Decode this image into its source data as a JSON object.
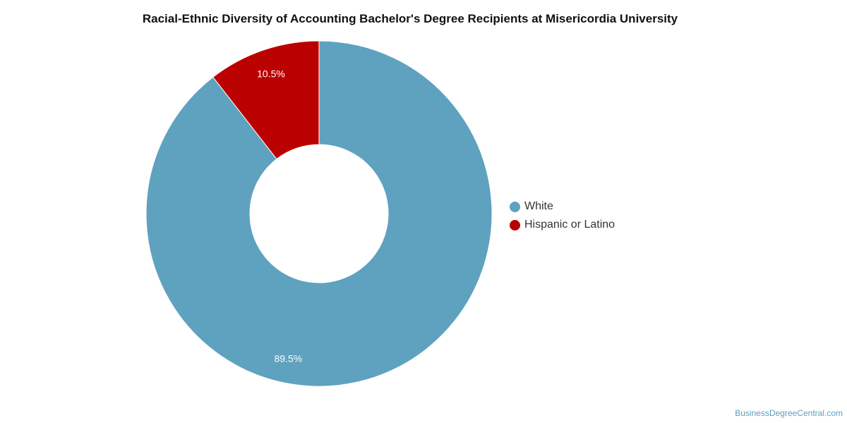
{
  "chart_data": {
    "type": "pie",
    "title": "Racial-Ethnic Diversity of Accounting Bachelor's Degree Recipients at Misericordia University",
    "donut": true,
    "legend_position": "right",
    "slices": [
      {
        "label": "White",
        "value": 89.5,
        "value_label": "89.5%",
        "color": "#5ea2bf"
      },
      {
        "label": "Hispanic or Latino",
        "value": 10.5,
        "value_label": "10.5%",
        "color": "#bb0000"
      }
    ]
  },
  "footer": {
    "credit": "BusinessDegreeCentral.com"
  }
}
